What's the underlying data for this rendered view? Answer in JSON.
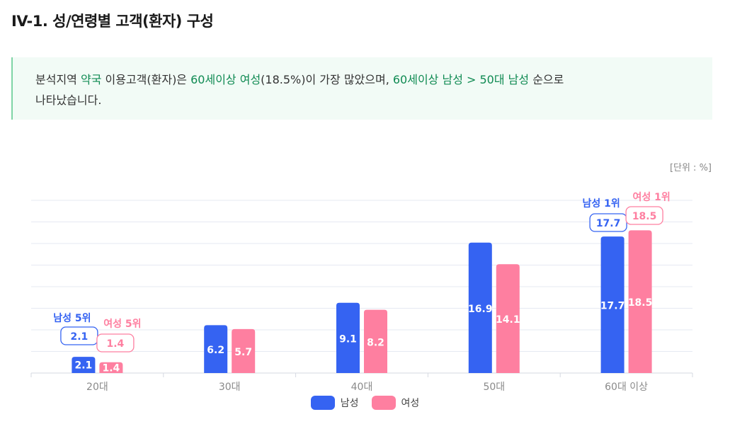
{
  "page": {
    "title": "IV-1. 성/연령별 고객(환자) 구성",
    "summary": {
      "s1": "분석지역 ",
      "h1": "약국",
      "s2": " 이용고객(환자)은 ",
      "h2": "60세이상 여성",
      "s3": "(18.5%)이 가장 많았으며, ",
      "h3": "60세이상 남성 > 50대 남성",
      "s4": " 순으로",
      "s5": "나타났습니다."
    },
    "unit": "[단위 : %]"
  },
  "colors": {
    "male": "#3563f2",
    "female": "#fe7fa0",
    "highlight": "#0f8a52"
  },
  "chart_data": {
    "type": "bar",
    "categories": [
      "20대",
      "30대",
      "40대",
      "50대",
      "60대 이상"
    ],
    "series": [
      {
        "name": "남성",
        "values": [
          2.1,
          6.2,
          9.1,
          16.9,
          17.7
        ]
      },
      {
        "name": "여성",
        "values": [
          1.4,
          5.7,
          8.2,
          14.1,
          18.5
        ]
      }
    ],
    "ylim": [
      0,
      20
    ],
    "grid": true,
    "legend_position": "bottom",
    "annotations": [
      {
        "category": "20대",
        "series": "남성",
        "rank_label": "남성 5위",
        "value": "2.1"
      },
      {
        "category": "20대",
        "series": "여성",
        "rank_label": "여성 5위",
        "value": "1.4"
      },
      {
        "category": "60대 이상",
        "series": "남성",
        "rank_label": "남성 1위",
        "value": "17.7"
      },
      {
        "category": "60대 이상",
        "series": "여성",
        "rank_label": "여성 1위",
        "value": "18.5"
      }
    ]
  }
}
